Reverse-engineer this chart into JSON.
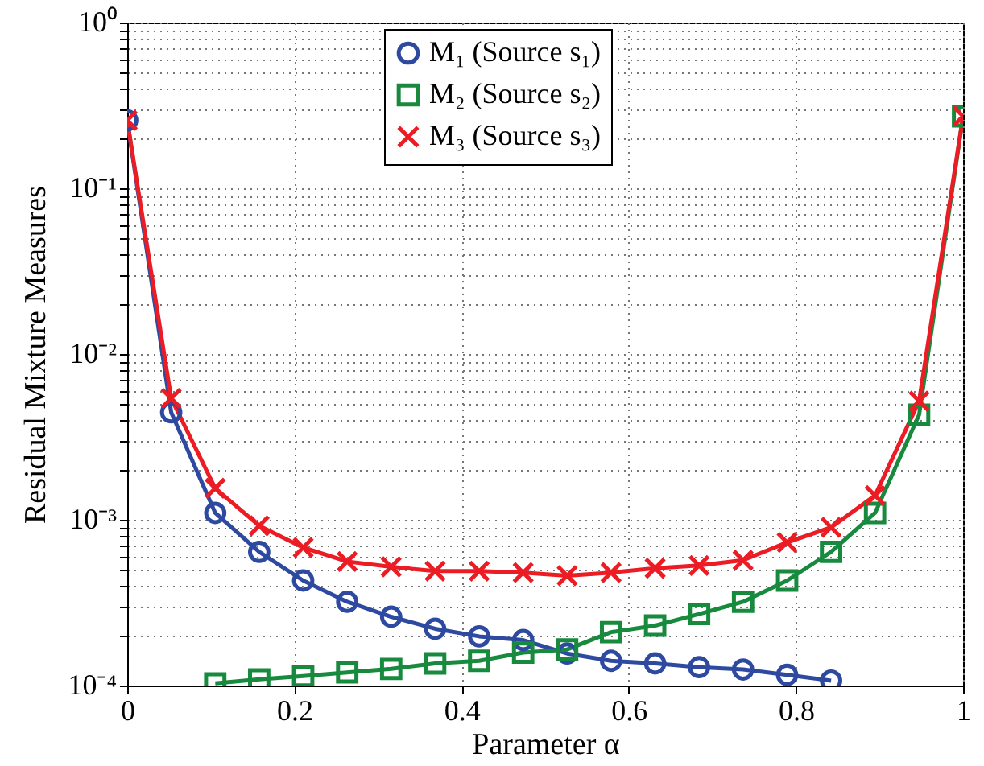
{
  "chart_data": {
    "type": "line",
    "xlabel": "Parameter α",
    "ylabel": "Residual Mixture Measures",
    "x": [
      0,
      0.0526,
      0.1053,
      0.1579,
      0.2105,
      0.2632,
      0.3158,
      0.3684,
      0.4211,
      0.4737,
      0.5263,
      0.5789,
      0.6316,
      0.6842,
      0.7368,
      0.7895,
      0.8421,
      0.8947,
      0.9474,
      1
    ],
    "series": [
      {
        "name": "M₁ (Source s₁)",
        "color": "#2e49a0",
        "marker": "circle",
        "values": [
          0.257,
          0.00445,
          0.0011,
          0.00064,
          0.00043,
          0.00032,
          0.00026,
          0.00022,
          0.000198,
          0.000188,
          0.000156,
          0.000141,
          0.000136,
          0.000129,
          0.000125,
          0.000116,
          0.000107,
          null,
          null,
          null
        ]
      },
      {
        "name": "M₂ (Source s₂)",
        "color": "#178a3e",
        "marker": "square",
        "values": [
          null,
          null,
          0.000103,
          0.000109,
          0.000114,
          0.00012,
          0.000126,
          0.000136,
          0.000141,
          0.000158,
          0.000165,
          0.00021,
          0.00023,
          0.00027,
          0.00032,
          0.00043,
          0.00064,
          0.0011,
          0.0043,
          0.272
        ]
      },
      {
        "name": "M₃ (Source s₃)",
        "color": "#ec1c24",
        "marker": "cross",
        "values": [
          0.257,
          0.0054,
          0.00155,
          0.00092,
          0.00068,
          0.00056,
          0.00052,
          0.00049,
          0.00049,
          0.00048,
          0.00046,
          0.00048,
          0.00051,
          0.00053,
          0.00057,
          0.00073,
          0.0009,
          0.0014,
          0.0052,
          0.272
        ]
      }
    ],
    "xlim": [
      0,
      1
    ],
    "xticks": [
      0,
      0.2,
      0.4,
      0.6,
      0.8,
      1
    ],
    "ylim": [
      0.0001,
      1
    ],
    "log": "y",
    "yticks": [
      {
        "value": 0.0001,
        "label": "10⁻⁴"
      },
      {
        "value": 0.0002,
        "label": null
      },
      {
        "value": 0.0003,
        "label": null
      },
      {
        "value": 0.0004,
        "label": null
      },
      {
        "value": 0.0005,
        "label": null
      },
      {
        "value": 0.0006,
        "label": null
      },
      {
        "value": 0.0007,
        "label": null
      },
      {
        "value": 0.0008,
        "label": null
      },
      {
        "value": 0.0009,
        "label": null
      },
      {
        "value": 0.001,
        "label": "10⁻³"
      },
      {
        "value": 0.002,
        "label": null
      },
      {
        "value": 0.003,
        "label": null
      },
      {
        "value": 0.004,
        "label": null
      },
      {
        "value": 0.005,
        "label": null
      },
      {
        "value": 0.006,
        "label": null
      },
      {
        "value": 0.007,
        "label": null
      },
      {
        "value": 0.008,
        "label": null
      },
      {
        "value": 0.009,
        "label": null
      },
      {
        "value": 0.01,
        "label": "10⁻²"
      },
      {
        "value": 0.02,
        "label": null
      },
      {
        "value": 0.03,
        "label": null
      },
      {
        "value": 0.04,
        "label": null
      },
      {
        "value": 0.05,
        "label": null
      },
      {
        "value": 0.06,
        "label": null
      },
      {
        "value": 0.07,
        "label": null
      },
      {
        "value": 0.08,
        "label": null
      },
      {
        "value": 0.09,
        "label": null
      },
      {
        "value": 0.1,
        "label": "10⁻¹"
      },
      {
        "value": 0.2,
        "label": null
      },
      {
        "value": 0.3,
        "label": null
      },
      {
        "value": 0.4,
        "label": null
      },
      {
        "value": 0.5,
        "label": null
      },
      {
        "value": 0.6,
        "label": null
      },
      {
        "value": 0.7,
        "label": null
      },
      {
        "value": 0.8,
        "label": null
      },
      {
        "value": 0.9,
        "label": null
      },
      {
        "value": 1,
        "label": "10⁰"
      }
    ],
    "grid": true,
    "legend": "top",
    "line_style": "solid"
  }
}
